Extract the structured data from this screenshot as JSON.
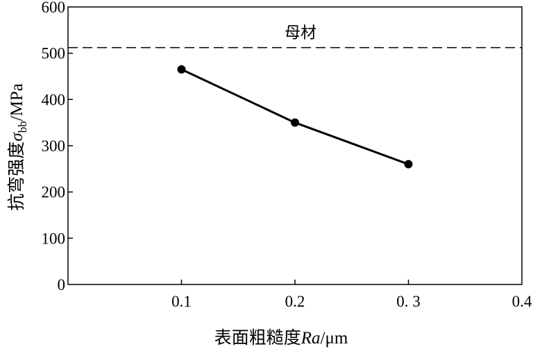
{
  "chart_data": {
    "type": "line",
    "x": [
      0.1,
      0.2,
      0.3
    ],
    "series": [
      {
        "values": [
          465,
          350,
          260
        ],
        "color": "#000000"
      }
    ],
    "xlabel_prefix": "表面粗糙度",
    "xlabel_var": "Ra",
    "xlabel_unit": "/μm",
    "ylabel_prefix": "抗弯强度",
    "ylabel_var": "σ",
    "ylabel_sub": "bb",
    "ylabel_unit": "/MPa",
    "xlim": [
      0,
      0.4
    ],
    "ylim": [
      0,
      600
    ],
    "x_ticks": [
      0.1,
      0.2,
      0.3,
      0.4
    ],
    "x_tick_labels": [
      "0.1",
      "0.2",
      "0. 3",
      "0.4"
    ],
    "y_ticks": [
      0,
      100,
      200,
      300,
      400,
      500,
      600
    ],
    "y_tick_labels": [
      "0",
      "100",
      "200",
      "300",
      "400",
      "500",
      "600"
    ],
    "reference_line": {
      "value": 512,
      "label": "母材",
      "style": "dashed"
    },
    "grid": false,
    "legend": "none"
  }
}
